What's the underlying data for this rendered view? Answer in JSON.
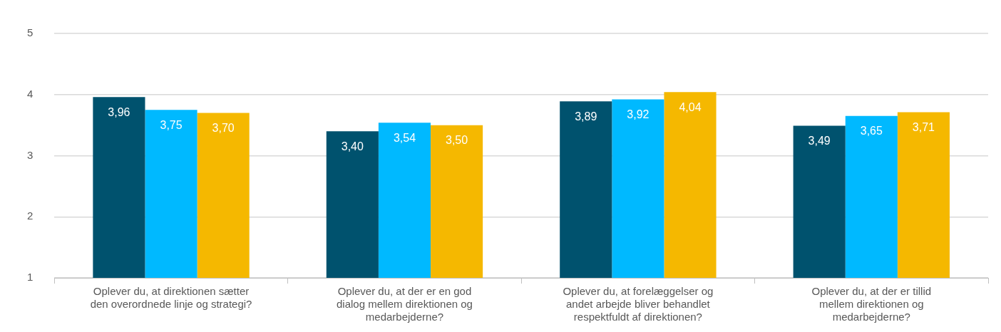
{
  "chart_data": {
    "type": "bar",
    "categories": [
      "Oplever du, at direktionen sætter den overordnede linje og strategi?",
      "Oplever du, at der er en god dialog mellem direktionen og medarbejderne?",
      "Oplever du, at forelæggelser og andet arbejde bliver behandlet respektfuldt af direktionen?",
      "Oplever du, at der er tillid mellem direktionen og medarbejderne?"
    ],
    "series": [
      {
        "color": "#00526e",
        "values": [
          3.96,
          3.4,
          3.89,
          3.49
        ],
        "value_labels": [
          "3,96",
          "3,40",
          "3,89",
          "3,49"
        ]
      },
      {
        "color": "#00b9ff",
        "values": [
          3.75,
          3.54,
          3.92,
          3.65
        ],
        "value_labels": [
          "3,75",
          "3,54",
          "3,92",
          "3,65"
        ]
      },
      {
        "color": "#f5b800",
        "values": [
          3.7,
          3.5,
          4.04,
          3.71
        ],
        "value_labels": [
          "3,70",
          "3,50",
          "4,04",
          "3,71"
        ]
      }
    ],
    "ylim": [
      1,
      5
    ],
    "yticks": [
      1,
      2,
      3,
      4,
      5
    ],
    "grid": "y",
    "legend": false
  }
}
